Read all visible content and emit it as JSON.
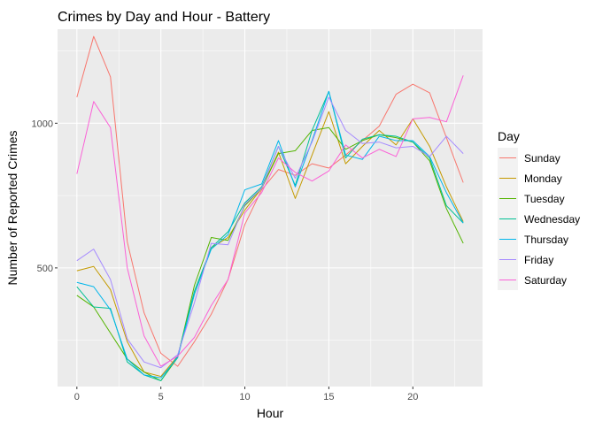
{
  "chart_data": {
    "type": "line",
    "title": "Crimes by Day and Hour - Battery",
    "xlabel": "Hour",
    "ylabel": "Number of Reported Crimes",
    "xlim": [
      -1.15,
      24.15
    ],
    "ylim": [
      90,
      1325
    ],
    "x_ticks": [
      0,
      5,
      10,
      15,
      20
    ],
    "y_ticks": [
      500,
      1000
    ],
    "grid": true,
    "legend_title": "Day",
    "legend_position": "right",
    "x": [
      0,
      1,
      2,
      3,
      4,
      5,
      6,
      7,
      8,
      9,
      10,
      11,
      12,
      13,
      14,
      15,
      16,
      17,
      18,
      19,
      20,
      21,
      22,
      23
    ],
    "series": [
      {
        "name": "Sunday",
        "color": "#F8766D",
        "values": [
          1090,
          1300,
          1160,
          590,
          345,
          205,
          160,
          245,
          340,
          460,
          650,
          770,
          840,
          820,
          860,
          845,
          890,
          940,
          990,
          1100,
          1135,
          1105,
          950,
          795
        ]
      },
      {
        "name": "Monday",
        "color": "#C49A00",
        "values": [
          490,
          505,
          425,
          245,
          140,
          125,
          195,
          410,
          570,
          605,
          700,
          775,
          900,
          740,
          890,
          1040,
          860,
          920,
          975,
          925,
          1015,
          920,
          780,
          660
        ]
      },
      {
        "name": "Tuesday",
        "color": "#53B400",
        "values": [
          405,
          365,
          275,
          185,
          140,
          110,
          190,
          440,
          605,
          595,
          715,
          775,
          895,
          905,
          975,
          985,
          910,
          940,
          960,
          950,
          935,
          870,
          705,
          585
        ]
      },
      {
        "name": "Wednesday",
        "color": "#00C094",
        "values": [
          435,
          365,
          360,
          175,
          130,
          110,
          195,
          420,
          570,
          625,
          725,
          780,
          920,
          785,
          975,
          1110,
          880,
          945,
          960,
          955,
          935,
          880,
          715,
          655
        ]
      },
      {
        "name": "Thursday",
        "color": "#00B6EB",
        "values": [
          450,
          435,
          355,
          185,
          130,
          120,
          190,
          410,
          565,
          615,
          770,
          790,
          940,
          780,
          940,
          1110,
          890,
          875,
          955,
          940,
          940,
          885,
          760,
          655
        ]
      },
      {
        "name": "Friday",
        "color": "#A58AFF",
        "values": [
          525,
          565,
          460,
          255,
          175,
          155,
          200,
          380,
          585,
          580,
          720,
          775,
          920,
          810,
          935,
          1090,
          975,
          930,
          935,
          915,
          920,
          885,
          955,
          895
        ]
      },
      {
        "name": "Saturday",
        "color": "#FB61D7",
        "values": [
          825,
          1075,
          985,
          500,
          265,
          160,
          195,
          260,
          370,
          460,
          690,
          760,
          880,
          830,
          800,
          835,
          925,
          880,
          910,
          885,
          1015,
          1020,
          1005,
          1165
        ]
      }
    ]
  }
}
